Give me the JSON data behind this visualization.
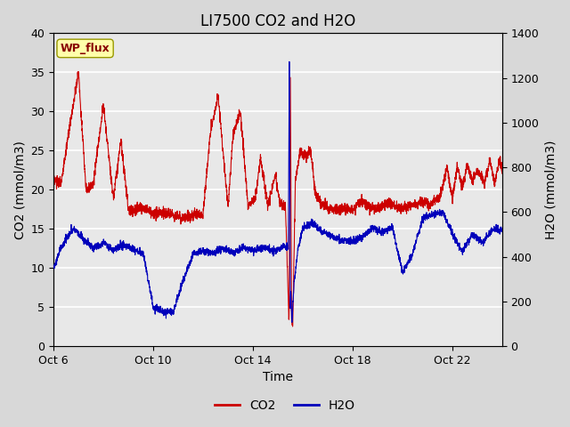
{
  "title": "LI7500 CO2 and H2O",
  "xlabel": "Time",
  "ylabel_left": "CO2 (mmol/m3)",
  "ylabel_right": "H2O (mmol/m3)",
  "ylim_left": [
    0,
    40
  ],
  "ylim_right": [
    0,
    1400
  ],
  "yticks_left": [
    0,
    5,
    10,
    15,
    20,
    25,
    30,
    35,
    40
  ],
  "yticks_right": [
    0,
    200,
    400,
    600,
    800,
    1000,
    1200,
    1400
  ],
  "xtick_labels": [
    "Oct 6",
    "Oct 10",
    "Oct 14",
    "Oct 18",
    "Oct 22"
  ],
  "xtick_positions": [
    0,
    4,
    8,
    12,
    16
  ],
  "total_days": 18,
  "bg_color": "#d8d8d8",
  "plot_bg_color": "#e8e8e8",
  "co2_color": "#cc0000",
  "h2o_color": "#0000bb",
  "annotation_text": "WP_flux",
  "annotation_bg": "#ffffaa",
  "annotation_border": "#999900",
  "title_fontsize": 12,
  "axis_label_fontsize": 10,
  "tick_fontsize": 9,
  "linewidth": 0.8
}
